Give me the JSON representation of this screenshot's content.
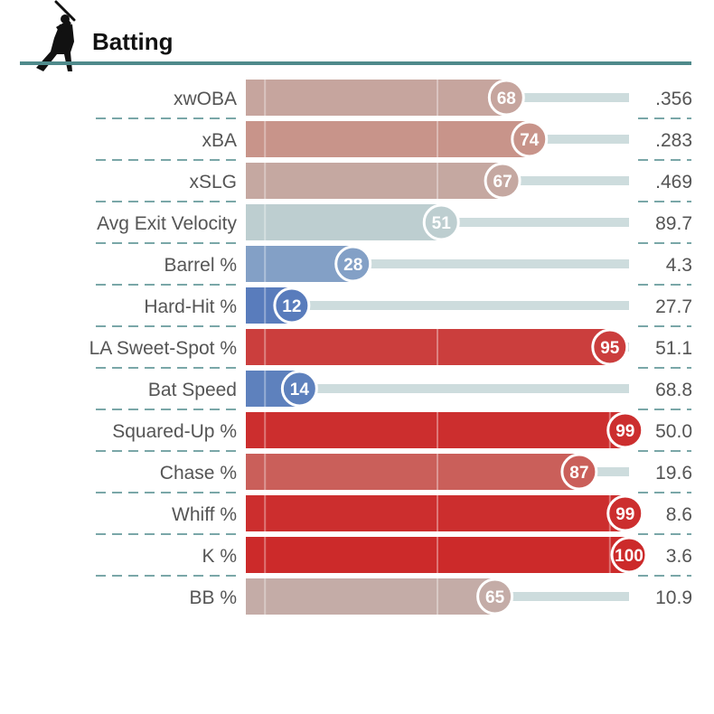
{
  "chart_data": {
    "type": "bar",
    "title": "Batting",
    "xlim": [
      0,
      100
    ],
    "icon": "batter-silhouette-icon",
    "categories": [
      "xwOBA",
      "xBA",
      "xSLG",
      "Avg Exit Velocity",
      "Barrel %",
      "Hard-Hit %",
      "LA Sweet-Spot %",
      "Bat Speed",
      "Squared-Up %",
      "Chase %",
      "Whiff %",
      "K %",
      "BB %"
    ],
    "percentiles": [
      68,
      74,
      67,
      51,
      28,
      12,
      95,
      14,
      99,
      87,
      99,
      100,
      65
    ],
    "stat_values": [
      ".356",
      ".283",
      ".469",
      "89.7",
      "4.3",
      "27.7",
      "51.1",
      "68.8",
      "50.0",
      "19.6",
      "8.6",
      "3.6",
      "10.9"
    ],
    "colors": {
      "header_line": "#4f8a8b",
      "track": "#cddcdd",
      "divider": "#4f8a8b",
      "cool": "#3a62b5",
      "neutral": "#bcd0d3",
      "hot": "#cc2a2a"
    }
  }
}
